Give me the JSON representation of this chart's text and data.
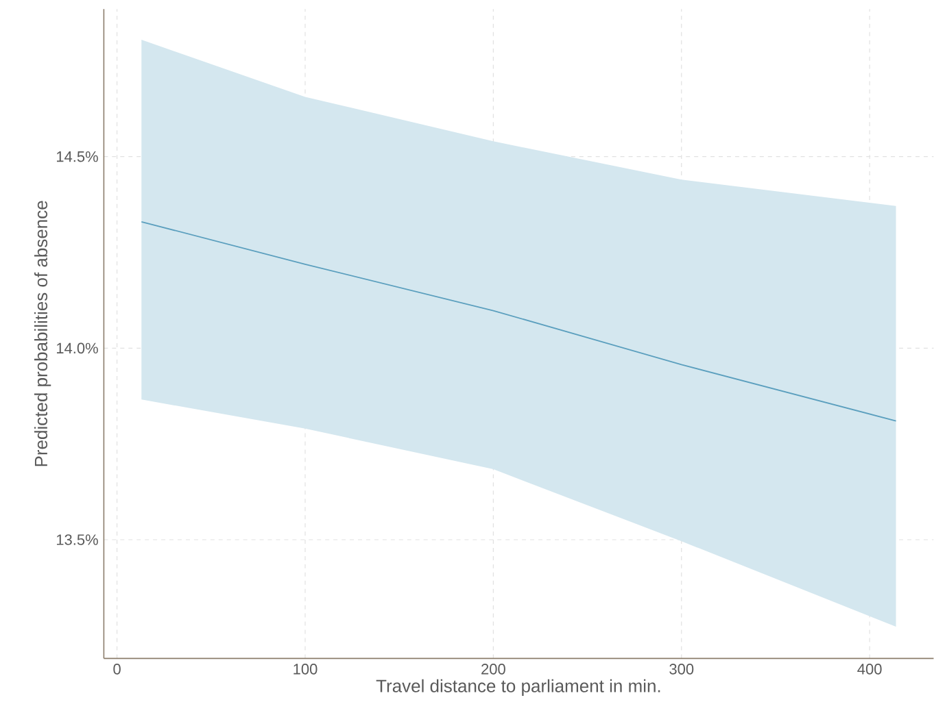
{
  "chart_data": {
    "type": "line",
    "xlabel": "Travel distance to parliament in min.",
    "ylabel": "Predicted probabilities of absence",
    "x": [
      13,
      100,
      200,
      300,
      414
    ],
    "series": [
      {
        "color": "#5b9fbe",
        "values": [
          14.33,
          14.219,
          14.098,
          13.957,
          13.81
        ],
        "lower": [
          13.866,
          13.79,
          13.684,
          13.496,
          13.273
        ],
        "upper": [
          14.805,
          14.656,
          14.54,
          14.44,
          14.371
        ]
      }
    ],
    "xlim": [
      -7,
      434
    ],
    "xticks": [
      0,
      100,
      200,
      300,
      400
    ],
    "ylim": [
      13.19,
      14.885
    ],
    "yticks": [
      {
        "value": 13.5,
        "label": "13.5%"
      },
      {
        "value": 14.0,
        "label": "14.0%"
      },
      {
        "value": 14.5,
        "label": "14.5%"
      }
    ],
    "grid": true,
    "line_style": "solid",
    "marker": "none"
  }
}
